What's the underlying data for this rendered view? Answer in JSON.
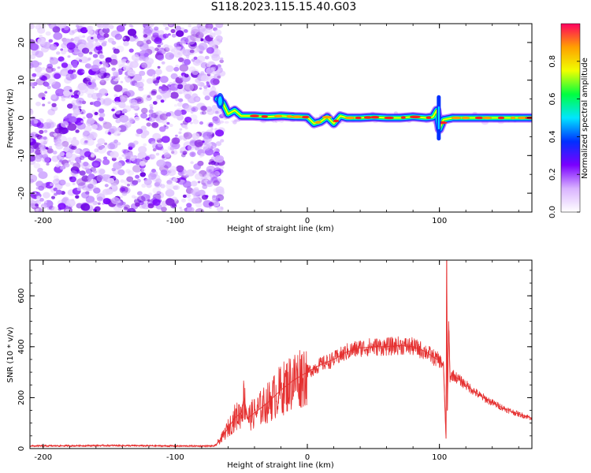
{
  "page_title": "S118.2023.115.15.40.G03",
  "colors": {
    "snr_line": "#e53030",
    "noise_purple": "#8a2be2",
    "colorbar": [
      "#ffffff",
      "#d9b3ff",
      "#7a00ff",
      "#0030ff",
      "#00e5ff",
      "#00ff40",
      "#f0ff00",
      "#ffa000",
      "#ff0060"
    ]
  },
  "chart_data": [
    {
      "type": "heatmap",
      "title": "",
      "xlabel": "Height of straight line (km)",
      "ylabel": "Frequency (Hz)",
      "xlim": [
        -210,
        170
      ],
      "ylim": [
        -25,
        25
      ],
      "x_ticks": [
        -200,
        -100,
        0,
        100
      ],
      "x_tick_labels": [
        "-200",
        "-100",
        "0",
        "100"
      ],
      "y_ticks": [
        -20,
        -10,
        0,
        10,
        20
      ],
      "y_tick_labels": [
        "-20",
        "-10",
        "0",
        "10",
        "20"
      ],
      "noise_region_x": [
        -210,
        -68
      ],
      "signal_start_x": -68,
      "ridge": {
        "x": [
          -68,
          -64,
          -60,
          -55,
          -50,
          -40,
          -30,
          -20,
          -10,
          0,
          5,
          10,
          15,
          20,
          25,
          30,
          40,
          50,
          60,
          70,
          80,
          90,
          95,
          98,
          100,
          103,
          110,
          120,
          140,
          160,
          170
        ],
        "frequency": [
          5,
          4,
          1,
          2,
          0.5,
          0.5,
          0.3,
          0.5,
          0.3,
          0.2,
          -1.5,
          -1,
          0.2,
          -1.5,
          0.5,
          0,
          0,
          0.2,
          0,
          0,
          0.3,
          0,
          0.2,
          2,
          -3,
          -0.5,
          0,
          0,
          0,
          0,
          0
        ]
      },
      "colorbar": {
        "label": "Normalized spectral amplitude",
        "ticks": [
          0.0,
          0.2,
          0.4,
          0.6,
          0.8
        ],
        "tick_labels": [
          "0.0",
          "0.2",
          "0.4",
          "0.6",
          "0.8"
        ],
        "range": [
          0,
          1
        ]
      }
    },
    {
      "type": "line",
      "title": "",
      "xlabel": "Height of straight line (km)",
      "ylabel": "SNR (10 * v/v)",
      "xlim": [
        -210,
        170
      ],
      "ylim": [
        0,
        740
      ],
      "x_ticks": [
        -200,
        -100,
        0,
        100
      ],
      "x_tick_labels": [
        "-200",
        "-100",
        "0",
        "100"
      ],
      "y_ticks": [
        0,
        200,
        400,
        600
      ],
      "y_tick_labels": [
        "0",
        "200",
        "400",
        "600"
      ],
      "series": [
        {
          "x": [
            -210,
            -150,
            -100,
            -70,
            -65,
            -60,
            -55,
            -50,
            -48,
            -45,
            -40,
            -35,
            -30,
            -20,
            -10,
            0,
            10,
            20,
            30,
            40,
            50,
            60,
            70,
            80,
            90,
            95,
            100,
            103,
            105,
            105.5,
            106,
            107,
            108,
            110,
            120,
            130,
            140,
            150,
            160,
            170
          ],
          "y": [
            10,
            12,
            10,
            10,
            40,
            80,
            120,
            140,
            200,
            120,
            140,
            160,
            180,
            230,
            270,
            300,
            330,
            350,
            380,
            395,
            400,
            400,
            405,
            400,
            380,
            360,
            345,
            330,
            40,
            740,
            150,
            500,
            280,
            290,
            250,
            210,
            180,
            155,
            135,
            120
          ]
        }
      ]
    }
  ]
}
